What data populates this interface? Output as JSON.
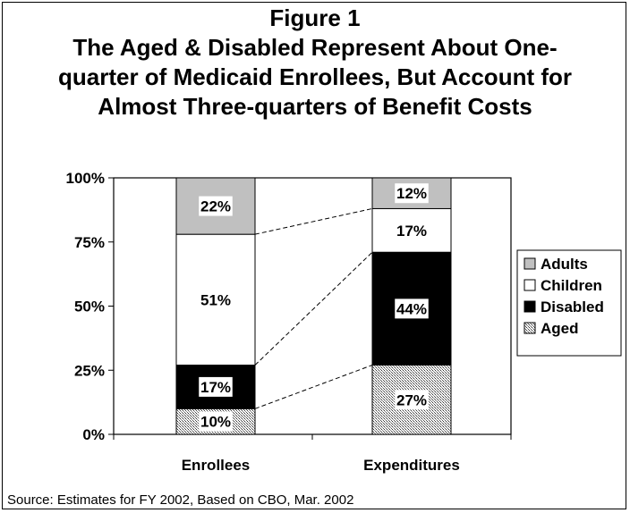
{
  "title_lines": [
    "Figure 1",
    "The Aged & Disabled Represent About One-",
    "quarter of Medicaid Enrollees, But Account for",
    "Almost Three-quarters of Benefit Costs"
  ],
  "source": "Source: Estimates for FY 2002, Based on CBO, Mar. 2002",
  "chart_data": {
    "type": "bar",
    "stacked": true,
    "categories": [
      "Enrollees",
      "Expenditures"
    ],
    "series": [
      {
        "name": "Aged",
        "values": [
          10,
          27
        ],
        "labels": [
          "10%",
          "27%"
        ],
        "fill": "hatch"
      },
      {
        "name": "Disabled",
        "values": [
          17,
          44
        ],
        "labels": [
          "17%",
          "44%"
        ],
        "fill": "#000000"
      },
      {
        "name": "Children",
        "values": [
          51,
          17
        ],
        "labels": [
          "51%",
          "17%"
        ],
        "fill": "#ffffff"
      },
      {
        "name": "Adults",
        "values": [
          22,
          12
        ],
        "labels": [
          "22%",
          "12%"
        ],
        "fill": "#c0c0c0"
      }
    ],
    "yticks": [
      "0%",
      "25%",
      "50%",
      "75%",
      "100%"
    ],
    "ylim": [
      0,
      100
    ],
    "legend": {
      "placement": "right",
      "order": [
        "Adults",
        "Children",
        "Disabled",
        "Aged"
      ]
    },
    "connector_lines": true,
    "grid": false
  }
}
